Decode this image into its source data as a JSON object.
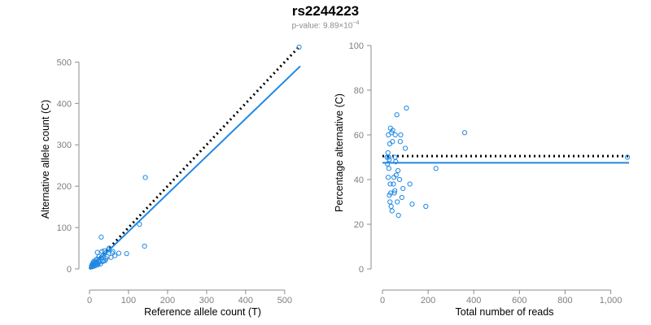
{
  "header": {
    "title": "rs2244223",
    "pvalue_prefix": "p-value: 9.89×10",
    "pvalue_exponent": "−4"
  },
  "colors": {
    "data": "#1f88e5",
    "reference_line": "#000000",
    "axis": "#8c8c8c",
    "tick_text": "#7f7f7f"
  },
  "chart_data": [
    {
      "type": "scatter",
      "title": "",
      "xlabel": "Reference allele count (T)",
      "ylabel": "Alternative allele count (C)",
      "xlim": [
        0,
        540
      ],
      "ylim": [
        0,
        540
      ],
      "x_ticks": [
        0,
        100,
        200,
        300,
        400,
        500
      ],
      "x_tick_labels": [
        "0",
        "100",
        "200",
        "300",
        "400",
        "500"
      ],
      "y_ticks": [
        0,
        100,
        200,
        300,
        400,
        500
      ],
      "y_tick_labels": [
        "0",
        "100",
        "200",
        "300",
        "400",
        "500"
      ],
      "grid": false,
      "points": [
        [
          537,
          536
        ],
        [
          143,
          221
        ],
        [
          141,
          55
        ],
        [
          128,
          108
        ],
        [
          95,
          37
        ],
        [
          75,
          38
        ],
        [
          65,
          32
        ],
        [
          60,
          42
        ],
        [
          55,
          28
        ],
        [
          50,
          50
        ],
        [
          48,
          46
        ],
        [
          45,
          30
        ],
        [
          42,
          25
        ],
        [
          40,
          38
        ],
        [
          38,
          44
        ],
        [
          36,
          20
        ],
        [
          34,
          18
        ],
        [
          32,
          42
        ],
        [
          30,
          77
        ],
        [
          30,
          27
        ],
        [
          28,
          12
        ],
        [
          26,
          22
        ],
        [
          25,
          16
        ],
        [
          24,
          30
        ],
        [
          23,
          20
        ],
        [
          22,
          13
        ],
        [
          21,
          10
        ],
        [
          20,
          24
        ],
        [
          19,
          14
        ],
        [
          18,
          17
        ],
        [
          17,
          11
        ],
        [
          16,
          22
        ],
        [
          15,
          8
        ],
        [
          14,
          16
        ],
        [
          13,
          13
        ],
        [
          12,
          10
        ],
        [
          11,
          18
        ],
        [
          10,
          12
        ],
        [
          10,
          6
        ],
        [
          9,
          15
        ],
        [
          8,
          9
        ],
        [
          7,
          11
        ],
        [
          6,
          5
        ],
        [
          5,
          7
        ],
        [
          40,
          20
        ],
        [
          58,
          38
        ],
        [
          35,
          33
        ],
        [
          20,
          40
        ]
      ],
      "lines": [
        {
          "name": "",
          "style": "dotted",
          "color": "#000000",
          "from": [
            0,
            0
          ],
          "to": [
            540,
            540
          ]
        },
        {
          "name": "",
          "style": "solid",
          "color": "#1f88e5",
          "from": [
            0,
            0
          ],
          "to": [
            540,
            490
          ]
        }
      ]
    },
    {
      "type": "scatter",
      "title": "",
      "xlabel": "Total number of reads",
      "ylabel": "Percentage alternative (C)",
      "xlim": [
        0,
        1080
      ],
      "ylim": [
        0,
        100
      ],
      "x_ticks": [
        0,
        200,
        400,
        600,
        800,
        1000
      ],
      "x_tick_labels": [
        "0",
        "200",
        "400",
        "600",
        "800",
        "1,000"
      ],
      "y_ticks": [
        0,
        20,
        40,
        60,
        80,
        100
      ],
      "y_tick_labels": [
        "0",
        "20",
        "40",
        "60",
        "80",
        "100"
      ],
      "grid": false,
      "points": [
        [
          1073,
          50
        ],
        [
          360,
          61
        ],
        [
          234,
          45
        ],
        [
          190,
          28
        ],
        [
          130,
          29
        ],
        [
          120,
          38
        ],
        [
          105,
          72
        ],
        [
          100,
          54
        ],
        [
          90,
          36
        ],
        [
          85,
          32
        ],
        [
          80,
          60
        ],
        [
          78,
          57
        ],
        [
          75,
          40
        ],
        [
          70,
          24
        ],
        [
          68,
          44
        ],
        [
          65,
          30
        ],
        [
          63,
          69
        ],
        [
          60,
          42
        ],
        [
          58,
          48
        ],
        [
          56,
          60
        ],
        [
          55,
          50
        ],
        [
          54,
          35
        ],
        [
          52,
          34
        ],
        [
          50,
          41
        ],
        [
          48,
          38
        ],
        [
          45,
          62
        ],
        [
          44,
          57
        ],
        [
          42,
          26
        ],
        [
          40,
          61
        ],
        [
          38,
          28
        ],
        [
          36,
          34
        ],
        [
          35,
          63
        ],
        [
          34,
          38
        ],
        [
          33,
          30
        ],
        [
          32,
          56
        ],
        [
          30,
          49
        ],
        [
          30,
          33
        ],
        [
          28,
          45
        ],
        [
          27,
          50
        ],
        [
          26,
          60
        ],
        [
          25,
          41
        ],
        [
          24,
          52
        ],
        [
          22,
          47
        ],
        [
          20,
          50
        ]
      ],
      "lines": [
        {
          "name": "",
          "style": "dotted",
          "color": "#000000",
          "from": [
            0,
            50.5
          ],
          "to": [
            1080,
            50.5
          ]
        },
        {
          "name": "",
          "style": "solid",
          "color": "#1f88e5",
          "from": [
            0,
            47.5
          ],
          "to": [
            1080,
            47.5
          ]
        }
      ]
    }
  ]
}
